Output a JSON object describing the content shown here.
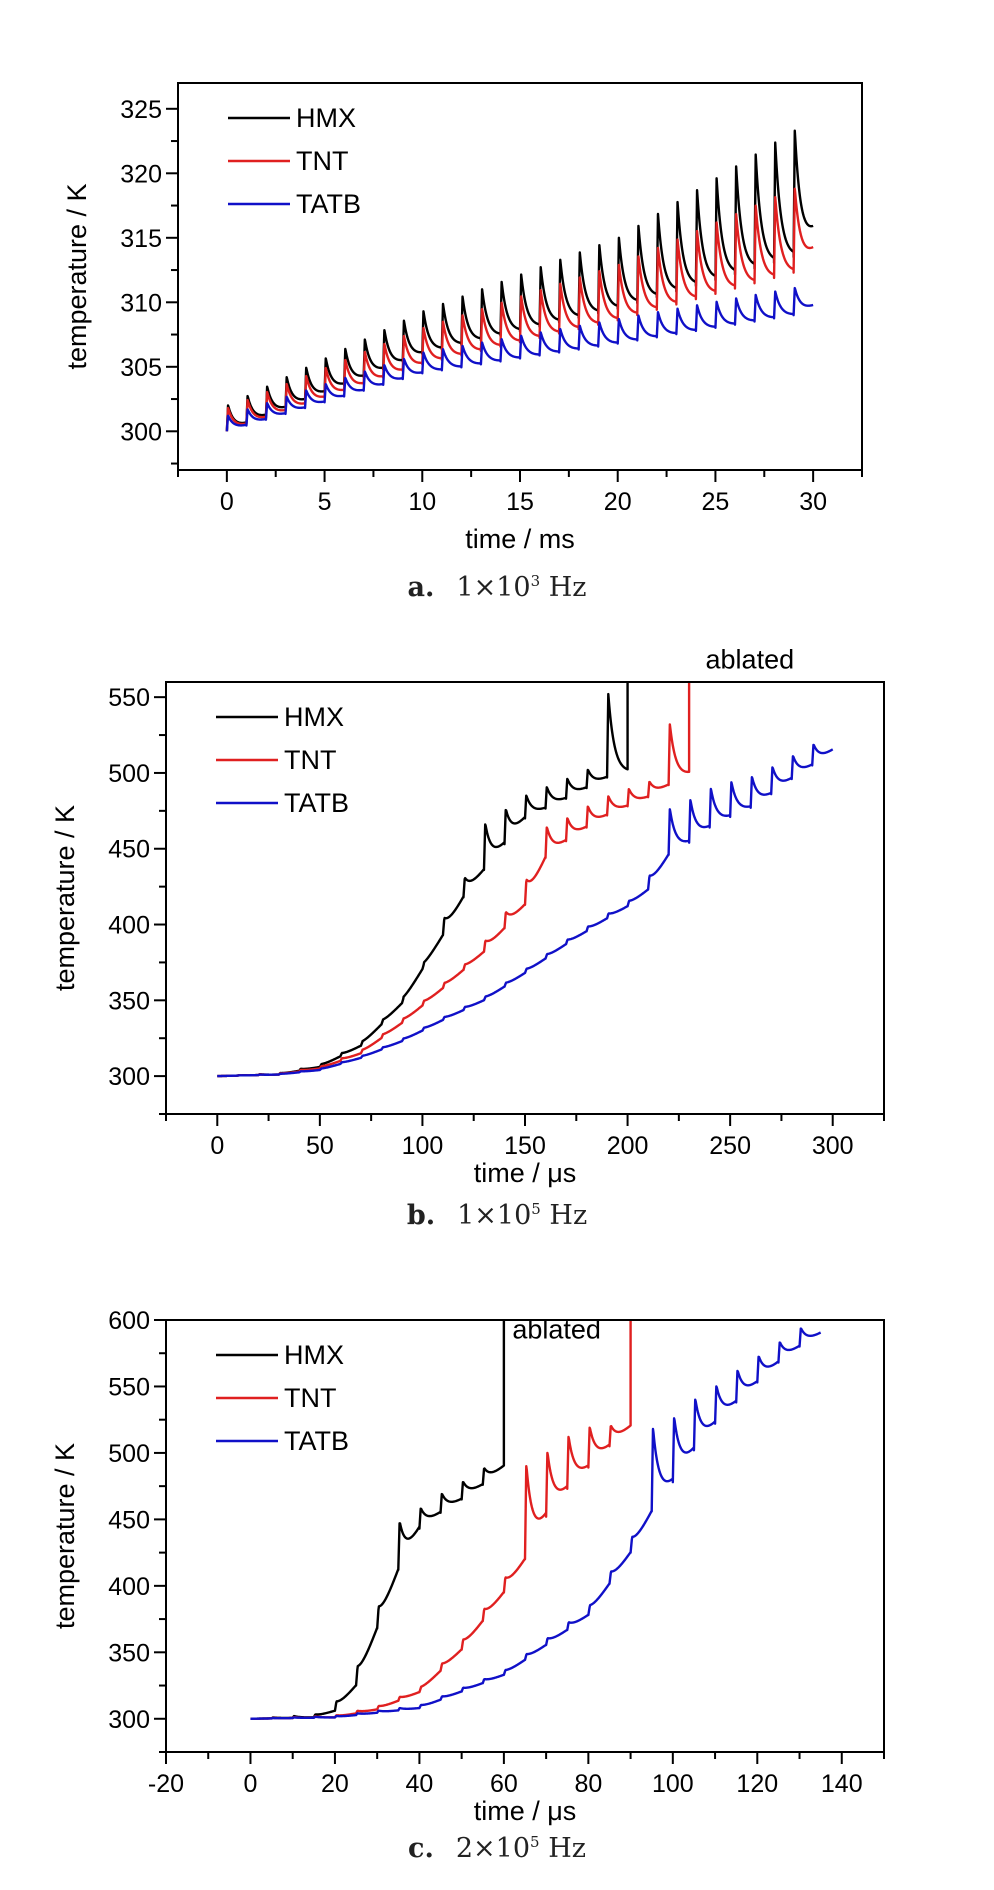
{
  "colors": {
    "HMX": "#000000",
    "TNT": "#e02020",
    "TATB": "#1010c8"
  },
  "chart_data": [
    {
      "type": "line",
      "panel_label": "a.",
      "caption_base": "1×10",
      "caption_exp": "3",
      "caption_unit": "Hz",
      "xlabel": "time / ms",
      "ylabel": "temperature / K",
      "xlim": [
        -2.5,
        32.5
      ],
      "ylim": [
        297,
        327
      ],
      "xticks": [
        0,
        5,
        10,
        15,
        20,
        25,
        30
      ],
      "yticks": [
        300,
        305,
        310,
        315,
        320,
        325
      ],
      "legend_position": "top-left",
      "annotation": "",
      "series": [
        {
          "name": "HMX",
          "pulse_period": 1,
          "start": 0,
          "end": 30,
          "base": [
            [
              0,
              300
            ],
            [
              10,
              306
            ],
            [
              20,
              309.5
            ],
            [
              29,
              313.5
            ],
            [
              30,
              315.5
            ]
          ],
          "spike": [
            [
              0,
              2
            ],
            [
              10,
              3.3
            ],
            [
              20,
              5.5
            ],
            [
              29,
              9.8
            ]
          ]
        },
        {
          "name": "TNT",
          "pulse_period": 1,
          "start": 0,
          "end": 30,
          "base": [
            [
              0,
              300
            ],
            [
              10,
              305.2
            ],
            [
              20,
              308.6
            ],
            [
              29,
              312.3
            ],
            [
              30,
              314
            ]
          ],
          "spike": [
            [
              0,
              1.8
            ],
            [
              10,
              2.8
            ],
            [
              20,
              4.3
            ],
            [
              29,
              6.5
            ]
          ]
        },
        {
          "name": "TATB",
          "pulse_period": 1,
          "start": 0,
          "end": 30,
          "base": [
            [
              0,
              300
            ],
            [
              10,
              304.5
            ],
            [
              20,
              306.8
            ],
            [
              29,
              309
            ],
            [
              30,
              309.7
            ]
          ],
          "spike": [
            [
              0,
              1.2
            ],
            [
              10,
              1.6
            ],
            [
              20,
              1.9
            ],
            [
              29,
              2.1
            ]
          ]
        }
      ]
    },
    {
      "type": "line",
      "panel_label": "b.",
      "caption_base": "1×10",
      "caption_exp": "5",
      "caption_unit": "Hz",
      "xlabel": "time / μs",
      "ylabel": "temperature / K",
      "xlim": [
        -25,
        325
      ],
      "ylim": [
        275,
        560
      ],
      "xticks": [
        0,
        50,
        100,
        150,
        200,
        250,
        300
      ],
      "yticks": [
        300,
        350,
        400,
        450,
        500,
        550
      ],
      "legend_position": "top-left",
      "annotation": "ablated",
      "annotation_at": [
        238,
        575
      ],
      "series": [
        {
          "name": "HMX",
          "pulse_period": 10,
          "start": 0,
          "end": 200,
          "ablation_x": 200,
          "base": [
            [
              0,
              300
            ],
            [
              30,
              301
            ],
            [
              50,
              306
            ],
            [
              70,
              320
            ],
            [
              90,
              348
            ],
            [
              110,
              393
            ],
            [
              120,
              418
            ],
            [
              130,
              436
            ],
            [
              150,
              470
            ],
            [
              170,
              483
            ],
            [
              180,
              490
            ],
            [
              190,
              497
            ],
            [
              200,
              500
            ]
          ],
          "spike": [
            [
              0,
              0
            ],
            [
              100,
              3
            ],
            [
              110,
              10
            ],
            [
              120,
              12
            ],
            [
              130,
              30
            ],
            [
              150,
              15
            ],
            [
              180,
              12
            ],
            [
              190,
              55
            ]
          ]
        },
        {
          "name": "TNT",
          "pulse_period": 10,
          "start": 0,
          "end": 230,
          "ablation_x": 230,
          "base": [
            [
              0,
              300
            ],
            [
              30,
              301
            ],
            [
              50,
              305
            ],
            [
              70,
              315
            ],
            [
              90,
              335
            ],
            [
              110,
              358
            ],
            [
              130,
              382
            ],
            [
              150,
              413
            ],
            [
              160,
              444
            ],
            [
              170,
              455
            ],
            [
              180,
              464
            ],
            [
              190,
              472
            ],
            [
              200,
              478
            ],
            [
              210,
              484
            ],
            [
              220,
              492
            ],
            [
              230,
              499
            ]
          ],
          "spike": [
            [
              0,
              0
            ],
            [
              120,
              3
            ],
            [
              140,
              10
            ],
            [
              150,
              15
            ],
            [
              160,
              20
            ],
            [
              170,
              15
            ],
            [
              210,
              10
            ],
            [
              220,
              40
            ]
          ]
        },
        {
          "name": "TATB",
          "pulse_period": 10,
          "start": 0,
          "end": 300,
          "base": [
            [
              0,
              300
            ],
            [
              30,
              301
            ],
            [
              50,
              304
            ],
            [
              70,
              312
            ],
            [
              90,
              323
            ],
            [
              110,
              337
            ],
            [
              130,
              350
            ],
            [
              150,
              368
            ],
            [
              170,
              387
            ],
            [
              190,
              404
            ],
            [
              200,
              412
            ],
            [
              210,
              423
            ],
            [
              220,
              446
            ],
            [
              230,
              454
            ],
            [
              240,
              464
            ],
            [
              250,
              471
            ],
            [
              260,
              477
            ],
            [
              270,
              486
            ],
            [
              280,
              496
            ],
            [
              290,
              505
            ],
            [
              300,
              515
            ]
          ],
          "spike": [
            [
              0,
              0
            ],
            [
              200,
              3
            ],
            [
              210,
              8
            ],
            [
              220,
              30
            ],
            [
              230,
              28
            ],
            [
              280,
              15
            ],
            [
              300,
              12
            ]
          ]
        }
      ]
    },
    {
      "type": "line",
      "panel_label": "c.",
      "caption_base": "2×10",
      "caption_exp": "5",
      "caption_unit": "Hz",
      "xlabel": "time / μs",
      "ylabel": "temperature / K",
      "xlim": [
        -20,
        150
      ],
      "ylim": [
        275,
        600
      ],
      "xticks": [
        -20,
        0,
        20,
        40,
        60,
        80,
        100,
        120,
        140
      ],
      "yticks": [
        300,
        350,
        400,
        450,
        500,
        550,
        600
      ],
      "legend_position": "top-left",
      "annotation": "ablated",
      "annotation_at": [
        62,
        593
      ],
      "series": [
        {
          "name": "HMX",
          "pulse_period": 5,
          "start": 0,
          "end": 60,
          "ablation_x": 60,
          "base": [
            [
              0,
              300
            ],
            [
              15,
              301
            ],
            [
              20,
              306
            ],
            [
              25,
              325
            ],
            [
              30,
              368
            ],
            [
              35,
              412
            ],
            [
              40,
              443
            ],
            [
              45,
              455
            ],
            [
              50,
              465
            ],
            [
              55,
              476
            ],
            [
              60,
              490
            ]
          ],
          "spike": [
            [
              0,
              0
            ],
            [
              15,
              2
            ],
            [
              20,
              6
            ],
            [
              25,
              12
            ],
            [
              30,
              14
            ],
            [
              35,
              35
            ],
            [
              40,
              15
            ],
            [
              55,
              12
            ]
          ]
        },
        {
          "name": "TNT",
          "pulse_period": 5,
          "start": 0,
          "end": 90,
          "ablation_x": 90,
          "base": [
            [
              0,
              300
            ],
            [
              20,
              301
            ],
            [
              30,
              307
            ],
            [
              40,
              320
            ],
            [
              50,
              352
            ],
            [
              60,
              395
            ],
            [
              65,
              420
            ],
            [
              70,
              452
            ],
            [
              75,
              473
            ],
            [
              80,
              489
            ],
            [
              85,
              505
            ],
            [
              90,
              520
            ]
          ],
          "spike": [
            [
              0,
              0
            ],
            [
              40,
              3
            ],
            [
              55,
              8
            ],
            [
              60,
              10
            ],
            [
              65,
              70
            ],
            [
              70,
              48
            ],
            [
              80,
              30
            ],
            [
              85,
              15
            ]
          ]
        },
        {
          "name": "TATB",
          "pulse_period": 5,
          "start": 0,
          "end": 135,
          "base": [
            [
              0,
              300
            ],
            [
              20,
              301
            ],
            [
              40,
              308
            ],
            [
              60,
              333
            ],
            [
              80,
              378
            ],
            [
              90,
              425
            ],
            [
              95,
              456
            ],
            [
              100,
              478
            ],
            [
              105,
              502
            ],
            [
              110,
              522
            ],
            [
              115,
              538
            ],
            [
              120,
              553
            ],
            [
              125,
              568
            ],
            [
              130,
              580
            ],
            [
              135,
              590
            ]
          ],
          "spike": [
            [
              0,
              0
            ],
            [
              60,
              3
            ],
            [
              80,
              6
            ],
            [
              90,
              10
            ],
            [
              95,
              62
            ],
            [
              100,
              48
            ],
            [
              110,
              28
            ],
            [
              125,
              15
            ],
            [
              135,
              12
            ]
          ]
        }
      ]
    }
  ]
}
